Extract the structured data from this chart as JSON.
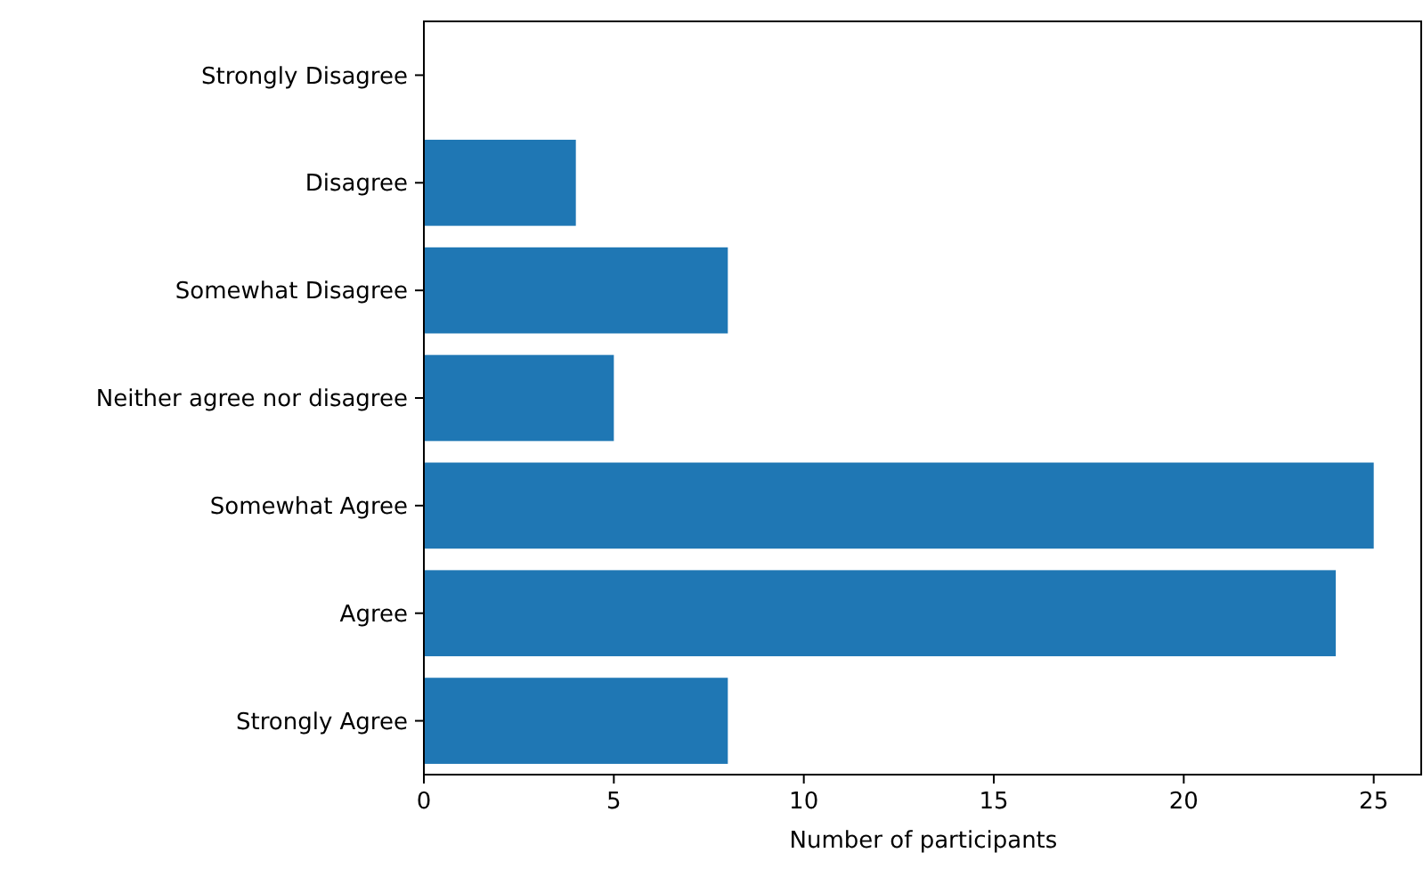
{
  "chart_data": {
    "type": "bar",
    "orientation": "horizontal",
    "xlabel": "Number of participants",
    "categories": [
      "Strongly Disagree",
      "Disagree",
      "Somewhat Disagree",
      "Neither agree nor disagree",
      "Somewhat Agree",
      "Agree",
      "Strongly Agree"
    ],
    "values": [
      0,
      4,
      8,
      5,
      25,
      24,
      8
    ],
    "color": "#1f77b4",
    "xlim": [
      0,
      26.25
    ],
    "xticks": [
      0,
      5,
      10,
      15,
      20,
      25
    ],
    "grid": false
  }
}
